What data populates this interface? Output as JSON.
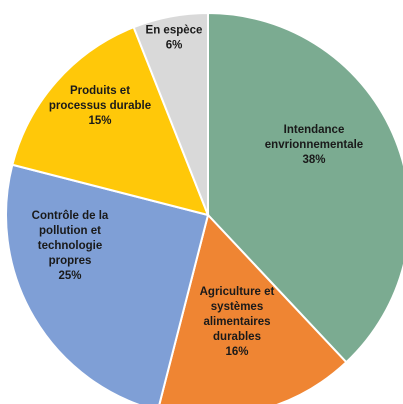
{
  "chart_data": {
    "type": "pie",
    "title": "",
    "slices": [
      {
        "label": "Intendance envrionnementale",
        "display": [
          "Intendance",
          "envrionnementale",
          "38%"
        ],
        "value": 38,
        "color": "#7bab91"
      },
      {
        "label": "Agriculture et systèmes alimentaires durables",
        "display": [
          "Agriculture et",
          "systèmes",
          "alimentaires",
          "durables",
          "16%"
        ],
        "value": 16,
        "color": "#ef8533"
      },
      {
        "label": "Contrôle de la pollution et technologie propres",
        "display": [
          "Contrôle de la",
          "pollution et",
          "technologie",
          "propres",
          "25%"
        ],
        "value": 25,
        "color": "#7f9fd6"
      },
      {
        "label": "Produits et processus durable",
        "display": [
          "Produits et",
          "processus durable",
          "15%"
        ],
        "value": 15,
        "color": "#ffc809"
      },
      {
        "label": "En espèce",
        "display": [
          "En espèce",
          "6%"
        ],
        "value": 6,
        "color": "#d9d9d9"
      }
    ]
  }
}
